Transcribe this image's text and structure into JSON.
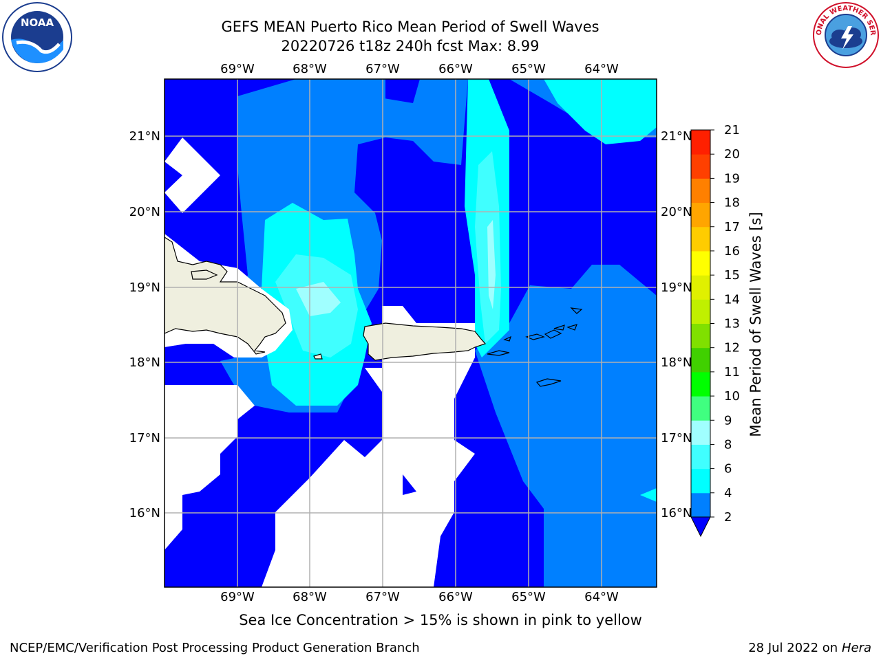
{
  "title": {
    "line1": "GEFS MEAN Puerto Rico Mean Period of Swell Waves",
    "line2": "20220726 t18z 240h fcst   Max: 8.99"
  },
  "lon_labels": [
    "69°W",
    "68°W",
    "67°W",
    "66°W",
    "65°W",
    "64°W"
  ],
  "lat_labels": [
    "21°N",
    "20°N",
    "19°N",
    "18°N",
    "17°N",
    "16°N"
  ],
  "colorbar": {
    "label": "Mean Period of Swell Waves [s]",
    "ticks": [
      "2",
      "4",
      "6",
      "8",
      "9",
      "10",
      "11",
      "12",
      "13",
      "14",
      "15",
      "16",
      "17",
      "18",
      "19",
      "20",
      "21"
    ],
    "colors": [
      "#0000ff",
      "#0080ff",
      "#00ffff",
      "#40ffff",
      "#a0ffff",
      "#40ff80",
      "#00ff00",
      "#40d000",
      "#80e000",
      "#c0f000",
      "#e0f000",
      "#ffff00",
      "#ffcc00",
      "#ffa500",
      "#ff8000",
      "#ff4000",
      "#ff2000",
      "#ff0000"
    ]
  },
  "palette": {
    "low": "#0000ff",
    "mid": "#0080ff",
    "cyan": "#00ffff",
    "light_cyan": "#40ffff",
    "pale_cyan": "#a0ffff",
    "land": "#efefdf",
    "no_data": "#ffffff",
    "grid": "#b0b0b0"
  },
  "caption": "Sea Ice Concentration > 15% is shown in pink to yellow",
  "footer": {
    "left": "NCEP/EMC/Verification Post Processing Product Generation Branch",
    "right_date": "28 Jul 2022 on ",
    "right_host": "Hera"
  },
  "logos": {
    "noaa_text": "NOAA",
    "nws_text": "NATIONAL WEATHER SERVICE"
  }
}
